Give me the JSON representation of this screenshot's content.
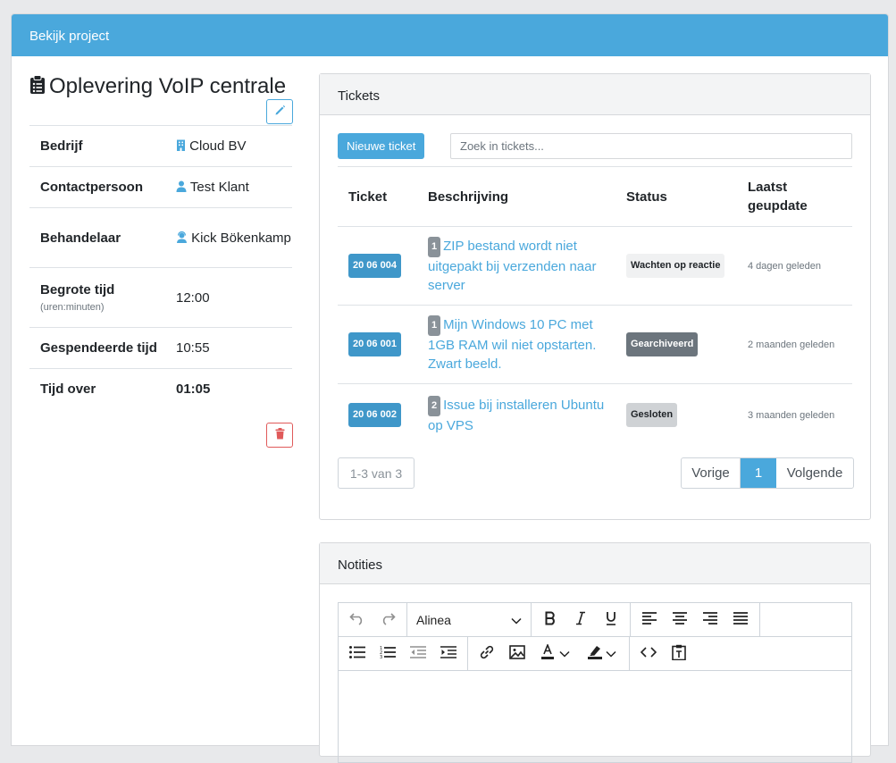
{
  "header": {
    "title": "Bekijk project"
  },
  "project": {
    "title": "Oplevering VoIP centrale",
    "fields": [
      {
        "key": "Bedrijf",
        "value": "Cloud BV"
      },
      {
        "key": "Contactpersoon",
        "value": "Test Klant"
      },
      {
        "key": "Behandelaar",
        "value": "Kick Bökenkamp"
      },
      {
        "key": "Begrote tijd",
        "sub": "(uren:minuten)",
        "value": "12:00"
      },
      {
        "key": "Gespendeerde tijd",
        "value": "10:55"
      },
      {
        "key": "Tijd over",
        "value": "01:05"
      }
    ]
  },
  "tickets": {
    "panel_title": "Tickets",
    "new_button": "Nieuwe ticket",
    "search_placeholder": "Zoek in tickets...",
    "columns": [
      "Ticket",
      "Beschrijving",
      "Status",
      "Laatst geupdate"
    ],
    "rows": [
      {
        "id": "20 06 004",
        "count": "1",
        "description": "ZIP bestand wordt niet uitgepakt bij verzenden naar server",
        "status": "Wachten op reactie",
        "updated": "4 dagen geleden"
      },
      {
        "id": "20 06 001",
        "count": "1",
        "description": "Mijn Windows 10 PC met 1GB RAM wil niet opstarten. Zwart beeld.",
        "status": "Gearchiveerd",
        "updated": "2 maanden geleden"
      },
      {
        "id": "20 06 002",
        "count": "2",
        "description": "Issue bij installeren Ubuntu op VPS",
        "status": "Gesloten",
        "updated": "3 maanden geleden"
      }
    ],
    "range": "1-3 van 3",
    "pager": {
      "prev": "Vorige",
      "current": "1",
      "next": "Volgende"
    }
  },
  "notes": {
    "panel_title": "Notities",
    "format_select": "Alinea"
  },
  "colors": {
    "accent": "#4aa8dc",
    "success": "#5cb85c",
    "danger": "#e05a5a"
  }
}
